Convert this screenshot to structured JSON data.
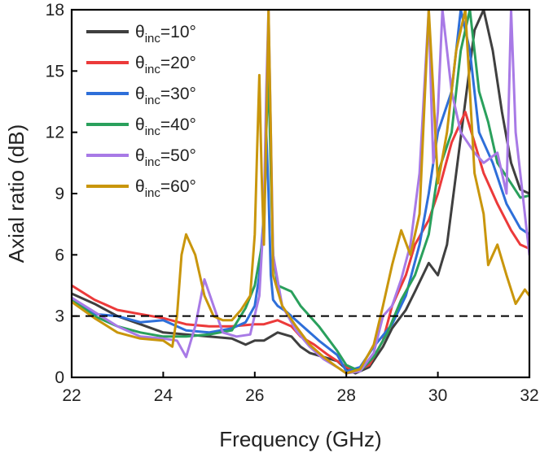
{
  "chart_data": {
    "type": "line",
    "xlabel": "Frequency (GHz)",
    "ylabel": "Axial ratio (dB)",
    "xlim": [
      22,
      32
    ],
    "ylim": [
      0,
      18
    ],
    "xticks": [
      22,
      24,
      26,
      28,
      30,
      32
    ],
    "yticks": [
      0,
      3,
      6,
      9,
      12,
      15,
      18
    ],
    "grid": false,
    "legend_position": "top-left",
    "reference_line": {
      "y": 3,
      "style": "dashed",
      "color": "#000000"
    },
    "series": [
      {
        "name": "θinc=10°",
        "label_main": "θ",
        "label_sub": "inc",
        "label_tail": "=10°",
        "color": "#3f3f3f",
        "x": [
          22,
          22.5,
          23,
          23.5,
          24,
          24.5,
          25,
          25.5,
          25.8,
          26,
          26.2,
          26.5,
          26.8,
          27,
          27.2,
          27.5,
          27.8,
          28,
          28.2,
          28.5,
          28.8,
          29,
          29.3,
          29.5,
          29.8,
          30,
          30.2,
          30.4,
          30.6,
          30.8,
          31,
          31.2,
          31.4,
          31.6,
          31.8,
          32
        ],
        "y": [
          4.1,
          3.6,
          3.0,
          2.6,
          2.2,
          2.1,
          2.0,
          1.9,
          1.6,
          1.8,
          1.8,
          2.2,
          2.0,
          1.5,
          1.2,
          1.0,
          0.8,
          0.4,
          0.2,
          0.5,
          1.5,
          2.4,
          3.3,
          4.2,
          5.6,
          5.0,
          6.5,
          10.0,
          13.5,
          17.0,
          18.0,
          16.0,
          13.0,
          10.5,
          9.2,
          9.0
        ]
      },
      {
        "name": "θinc=20°",
        "label_main": "θ",
        "label_sub": "inc",
        "label_tail": "=20°",
        "color": "#ec3a3a",
        "x": [
          22,
          22.5,
          23,
          23.5,
          24,
          24.5,
          25,
          25.5,
          26,
          26.2,
          26.5,
          26.8,
          27,
          27.3,
          27.6,
          28,
          28.2,
          28.5,
          28.8,
          29,
          29.3,
          29.5,
          29.8,
          30,
          30.3,
          30.6,
          30.8,
          31,
          31.3,
          31.6,
          31.8,
          32
        ],
        "y": [
          4.5,
          3.8,
          3.3,
          3.1,
          2.9,
          2.6,
          2.5,
          2.5,
          2.6,
          2.6,
          2.8,
          2.5,
          2.0,
          1.6,
          1.1,
          0.5,
          0.3,
          0.6,
          1.8,
          3.5,
          5.0,
          6.5,
          7.7,
          9.0,
          11.5,
          13.0,
          11.5,
          10.0,
          8.5,
          7.2,
          6.5,
          6.3
        ]
      },
      {
        "name": "θinc=30°",
        "label_main": "θ",
        "label_sub": "inc",
        "label_tail": "=30°",
        "color": "#2e6fd9",
        "x": [
          22,
          22.5,
          23,
          23.5,
          24,
          24.5,
          25,
          25.5,
          25.8,
          26,
          26.1,
          26.2,
          26.25,
          26.3,
          26.35,
          26.4,
          26.5,
          26.7,
          27,
          27.4,
          27.8,
          28,
          28.3,
          28.6,
          29,
          29.3,
          29.6,
          29.8,
          30,
          30.3,
          30.5,
          30.7,
          30.9,
          31.2,
          31.5,
          31.8,
          32
        ],
        "y": [
          3.9,
          3.1,
          3.0,
          2.7,
          2.8,
          2.3,
          2.2,
          2.4,
          2.7,
          3.5,
          5.0,
          8.0,
          12.0,
          9.0,
          5.0,
          3.8,
          3.5,
          3.2,
          2.6,
          1.8,
          1.1,
          0.3,
          0.5,
          1.5,
          2.6,
          4.0,
          6.5,
          9.0,
          12.0,
          14.0,
          18.0,
          16.0,
          12.0,
          10.5,
          8.5,
          7.3,
          7.0
        ]
      },
      {
        "name": "θinc=40°",
        "label_main": "θ",
        "label_sub": "inc",
        "label_tail": "=40°",
        "color": "#2aa05c",
        "x": [
          22,
          22.5,
          23,
          23.5,
          24,
          24.5,
          25,
          25.5,
          25.8,
          26,
          26.2,
          26.25,
          26.3,
          26.35,
          26.4,
          26.5,
          26.8,
          27,
          27.4,
          27.8,
          28,
          28.3,
          28.6,
          28.9,
          29.2,
          29.5,
          29.8,
          30,
          30.3,
          30.5,
          30.7,
          30.9,
          31.1,
          31.3,
          31.6,
          31.8,
          32
        ],
        "y": [
          3.8,
          3.0,
          2.5,
          2.2,
          2.0,
          2.0,
          2.1,
          2.3,
          3.4,
          4.5,
          7.0,
          12.0,
          15.0,
          10.0,
          6.0,
          4.5,
          4.2,
          3.5,
          2.5,
          1.3,
          0.6,
          0.3,
          1.0,
          2.2,
          3.8,
          5.0,
          7.0,
          10.0,
          12.0,
          16.0,
          18.0,
          14.0,
          12.5,
          10.5,
          9.5,
          8.8,
          8.9
        ]
      },
      {
        "name": "θinc=50°",
        "label_main": "θ",
        "label_sub": "inc",
        "label_tail": "=50°",
        "color": "#a87ae6",
        "x": [
          22,
          22.5,
          23,
          23.5,
          24,
          24.3,
          24.5,
          24.7,
          24.9,
          25.1,
          25.3,
          25.6,
          25.9,
          26.1,
          26.2,
          26.25,
          26.3,
          26.35,
          26.4,
          26.6,
          26.9,
          27.2,
          27.5,
          27.8,
          28,
          28.3,
          28.6,
          28.8,
          29,
          29.2,
          29.4,
          29.6,
          29.7,
          29.8,
          29.85,
          29.9,
          30.0,
          30.1,
          30.3,
          30.5,
          30.8,
          31,
          31.3,
          31.5,
          31.6,
          31.7,
          31.85,
          32
        ],
        "y": [
          3.9,
          3.2,
          2.5,
          2.0,
          1.9,
          1.8,
          1.0,
          2.5,
          4.8,
          3.5,
          2.2,
          2.0,
          2.1,
          4.0,
          8.0,
          14.0,
          18.0,
          12.0,
          6.0,
          3.5,
          2.3,
          1.5,
          0.9,
          0.5,
          0.2,
          0.3,
          1.2,
          3.0,
          3.5,
          4.8,
          6.5,
          10.0,
          14.0,
          18.0,
          14.0,
          10.5,
          13.0,
          18.0,
          14.0,
          12.0,
          11.0,
          10.5,
          11.0,
          9.0,
          18.0,
          12.0,
          9.0,
          6.0
        ]
      },
      {
        "name": "θinc=60°",
        "label_main": "θ",
        "label_sub": "inc",
        "label_tail": "=60°",
        "color": "#c9960c",
        "x": [
          22,
          22.5,
          23,
          23.5,
          24,
          24.2,
          24.3,
          24.4,
          24.5,
          24.7,
          24.9,
          25.1,
          25.3,
          25.5,
          25.7,
          25.9,
          26.0,
          26.05,
          26.1,
          26.15,
          26.2,
          26.25,
          26.3,
          26.35,
          26.4,
          26.6,
          26.9,
          27.2,
          27.5,
          27.8,
          28,
          28.3,
          28.6,
          28.8,
          29,
          29.2,
          29.4,
          29.6,
          29.7,
          29.8,
          29.9,
          30,
          30.2,
          30.4,
          30.6,
          30.8,
          31,
          31.1,
          31.3,
          31.5,
          31.7,
          31.9,
          32
        ],
        "y": [
          3.7,
          2.9,
          2.2,
          1.9,
          1.8,
          1.5,
          3.0,
          6.0,
          7.0,
          6.0,
          4.0,
          3.0,
          2.8,
          2.8,
          3.3,
          4.0,
          7.0,
          11.0,
          14.8,
          10.0,
          6.5,
          12.0,
          18.0,
          12.0,
          5.0,
          3.5,
          2.5,
          1.6,
          1.0,
          0.5,
          0.2,
          0.4,
          1.6,
          3.5,
          5.5,
          7.2,
          6.0,
          8.0,
          13.0,
          18.0,
          14.0,
          9.5,
          12.0,
          16.0,
          18.0,
          10.0,
          8.0,
          5.5,
          6.5,
          5.0,
          3.6,
          4.3,
          4.0
        ]
      }
    ]
  }
}
